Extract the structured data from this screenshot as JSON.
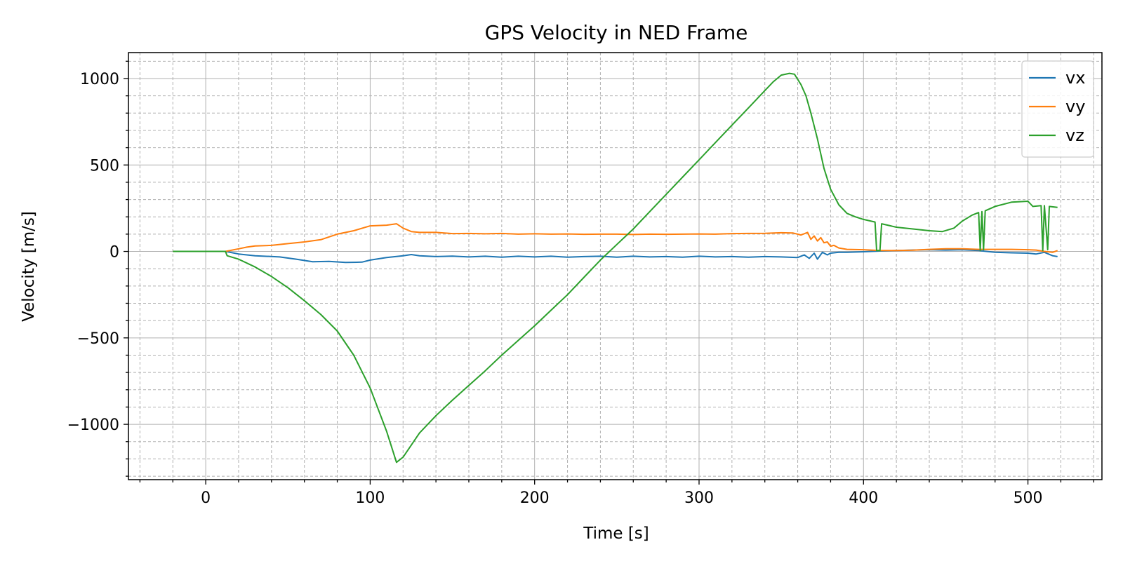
{
  "chart_data": {
    "type": "line",
    "title": "GPS Velocity in NED Frame",
    "xlabel": "Time [s]",
    "ylabel": "Velocity [m/s]",
    "xlim": [
      -47,
      545
    ],
    "ylim": [
      -1320,
      1150
    ],
    "xticks": [
      0,
      100,
      200,
      300,
      400,
      500
    ],
    "yticks": [
      -1000,
      -500,
      0,
      500,
      1000
    ],
    "xtick_labels": [
      "0",
      "100",
      "200",
      "300",
      "400",
      "500"
    ],
    "ytick_labels": [
      "−1000",
      "−500",
      "0",
      "500",
      "1000"
    ],
    "x_minor_step": 20,
    "y_minor_step": 100,
    "grid": true,
    "legend_position": "top-right",
    "series": [
      {
        "name": "vx",
        "color": "#1f77b4",
        "points": [
          [
            -20,
            0
          ],
          [
            12,
            0
          ],
          [
            20,
            -15
          ],
          [
            30,
            -25
          ],
          [
            45,
            -32
          ],
          [
            55,
            -45
          ],
          [
            65,
            -60
          ],
          [
            75,
            -58
          ],
          [
            85,
            -64
          ],
          [
            95,
            -62
          ],
          [
            100,
            -50
          ],
          [
            110,
            -35
          ],
          [
            120,
            -25
          ],
          [
            125,
            -18
          ],
          [
            130,
            -25
          ],
          [
            140,
            -30
          ],
          [
            150,
            -27
          ],
          [
            160,
            -32
          ],
          [
            170,
            -28
          ],
          [
            180,
            -33
          ],
          [
            190,
            -28
          ],
          [
            200,
            -32
          ],
          [
            210,
            -28
          ],
          [
            220,
            -33
          ],
          [
            230,
            -30
          ],
          [
            240,
            -28
          ],
          [
            250,
            -33
          ],
          [
            260,
            -28
          ],
          [
            270,
            -32
          ],
          [
            280,
            -30
          ],
          [
            290,
            -33
          ],
          [
            300,
            -28
          ],
          [
            310,
            -32
          ],
          [
            320,
            -30
          ],
          [
            330,
            -33
          ],
          [
            340,
            -30
          ],
          [
            350,
            -32
          ],
          [
            360,
            -35
          ],
          [
            364,
            -20
          ],
          [
            367,
            -40
          ],
          [
            370,
            -10
          ],
          [
            372,
            -45
          ],
          [
            375,
            -5
          ],
          [
            378,
            -20
          ],
          [
            380,
            -10
          ],
          [
            385,
            -5
          ],
          [
            390,
            -5
          ],
          [
            400,
            -2
          ],
          [
            410,
            2
          ],
          [
            420,
            5
          ],
          [
            430,
            8
          ],
          [
            440,
            10
          ],
          [
            450,
            8
          ],
          [
            460,
            10
          ],
          [
            470,
            5
          ],
          [
            480,
            -5
          ],
          [
            490,
            -8
          ],
          [
            500,
            -10
          ],
          [
            505,
            -15
          ],
          [
            510,
            -5
          ],
          [
            515,
            -25
          ],
          [
            518,
            -30
          ]
        ]
      },
      {
        "name": "vy",
        "color": "#ff7f0e",
        "points": [
          [
            -20,
            0
          ],
          [
            12,
            0
          ],
          [
            20,
            15
          ],
          [
            25,
            25
          ],
          [
            30,
            32
          ],
          [
            40,
            35
          ],
          [
            50,
            45
          ],
          [
            60,
            55
          ],
          [
            70,
            68
          ],
          [
            80,
            100
          ],
          [
            90,
            120
          ],
          [
            100,
            148
          ],
          [
            110,
            152
          ],
          [
            116,
            160
          ],
          [
            120,
            135
          ],
          [
            125,
            115
          ],
          [
            130,
            110
          ],
          [
            140,
            110
          ],
          [
            150,
            103
          ],
          [
            160,
            104
          ],
          [
            170,
            102
          ],
          [
            180,
            104
          ],
          [
            190,
            100
          ],
          [
            200,
            102
          ],
          [
            210,
            100
          ],
          [
            220,
            101
          ],
          [
            230,
            99
          ],
          [
            240,
            100
          ],
          [
            250,
            100
          ],
          [
            260,
            98
          ],
          [
            270,
            100
          ],
          [
            280,
            99
          ],
          [
            290,
            100
          ],
          [
            300,
            101
          ],
          [
            310,
            100
          ],
          [
            320,
            103
          ],
          [
            330,
            104
          ],
          [
            340,
            105
          ],
          [
            350,
            108
          ],
          [
            357,
            107
          ],
          [
            362,
            95
          ],
          [
            366,
            110
          ],
          [
            368,
            70
          ],
          [
            370,
            90
          ],
          [
            372,
            60
          ],
          [
            374,
            80
          ],
          [
            376,
            50
          ],
          [
            378,
            55
          ],
          [
            380,
            30
          ],
          [
            382,
            35
          ],
          [
            385,
            20
          ],
          [
            390,
            12
          ],
          [
            400,
            10
          ],
          [
            410,
            5
          ],
          [
            420,
            5
          ],
          [
            430,
            7
          ],
          [
            440,
            12
          ],
          [
            450,
            15
          ],
          [
            460,
            15
          ],
          [
            470,
            12
          ],
          [
            480,
            12
          ],
          [
            490,
            12
          ],
          [
            500,
            10
          ],
          [
            505,
            8
          ],
          [
            510,
            0
          ],
          [
            515,
            -5
          ],
          [
            518,
            5
          ]
        ]
      },
      {
        "name": "vz",
        "color": "#2ca02c",
        "points": [
          [
            -20,
            0
          ],
          [
            12,
            0
          ],
          [
            13,
            -25
          ],
          [
            20,
            -45
          ],
          [
            30,
            -90
          ],
          [
            40,
            -145
          ],
          [
            50,
            -210
          ],
          [
            60,
            -285
          ],
          [
            70,
            -365
          ],
          [
            80,
            -460
          ],
          [
            90,
            -600
          ],
          [
            100,
            -790
          ],
          [
            110,
            -1040
          ],
          [
            116,
            -1220
          ],
          [
            120,
            -1190
          ],
          [
            125,
            -1120
          ],
          [
            130,
            -1050
          ],
          [
            140,
            -950
          ],
          [
            150,
            -860
          ],
          [
            160,
            -775
          ],
          [
            170,
            -690
          ],
          [
            180,
            -600
          ],
          [
            190,
            -515
          ],
          [
            200,
            -430
          ],
          [
            210,
            -340
          ],
          [
            220,
            -250
          ],
          [
            230,
            -150
          ],
          [
            240,
            -50
          ],
          [
            250,
            40
          ],
          [
            260,
            130
          ],
          [
            270,
            230
          ],
          [
            280,
            330
          ],
          [
            290,
            430
          ],
          [
            300,
            530
          ],
          [
            310,
            630
          ],
          [
            320,
            730
          ],
          [
            330,
            830
          ],
          [
            340,
            930
          ],
          [
            345,
            980
          ],
          [
            350,
            1020
          ],
          [
            355,
            1030
          ],
          [
            358,
            1025
          ],
          [
            362,
            965
          ],
          [
            365,
            900
          ],
          [
            368,
            800
          ],
          [
            372,
            650
          ],
          [
            376,
            480
          ],
          [
            380,
            360
          ],
          [
            385,
            270
          ],
          [
            390,
            220
          ],
          [
            395,
            200
          ],
          [
            400,
            185
          ],
          [
            407,
            170
          ],
          [
            408,
            5
          ],
          [
            410,
            5
          ],
          [
            411,
            160
          ],
          [
            420,
            140
          ],
          [
            430,
            130
          ],
          [
            440,
            120
          ],
          [
            448,
            115
          ],
          [
            455,
            135
          ],
          [
            460,
            175
          ],
          [
            466,
            210
          ],
          [
            470,
            225
          ],
          [
            471,
            5
          ],
          [
            472,
            230
          ],
          [
            473,
            10
          ],
          [
            474,
            235
          ],
          [
            480,
            260
          ],
          [
            490,
            285
          ],
          [
            500,
            290
          ],
          [
            503,
            260
          ],
          [
            508,
            265
          ],
          [
            509,
            5
          ],
          [
            510,
            265
          ],
          [
            512,
            10
          ],
          [
            513,
            260
          ],
          [
            518,
            255
          ]
        ]
      }
    ]
  }
}
